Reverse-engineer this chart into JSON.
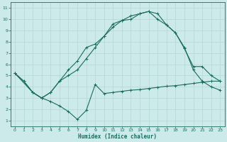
{
  "xlabel": "Humidex (Indice chaleur)",
  "bg_color": "#cdeaea",
  "grid_color": "#b8d8d8",
  "line_color": "#1a6b60",
  "xlim": [
    -0.5,
    23.5
  ],
  "ylim": [
    0.5,
    11.5
  ],
  "xticks": [
    0,
    1,
    2,
    3,
    4,
    5,
    6,
    7,
    8,
    9,
    10,
    11,
    12,
    13,
    14,
    15,
    16,
    17,
    18,
    19,
    20,
    21,
    22,
    23
  ],
  "yticks": [
    1,
    2,
    3,
    4,
    5,
    6,
    7,
    8,
    9,
    10,
    11
  ],
  "line1_x": [
    0,
    1,
    2,
    3,
    4,
    5,
    6,
    7,
    8,
    9,
    10,
    11,
    12,
    13,
    14,
    15,
    16,
    17,
    18,
    19,
    20,
    21,
    22,
    23
  ],
  "line1_y": [
    5.2,
    4.5,
    3.5,
    3.0,
    2.7,
    2.3,
    1.8,
    1.1,
    1.9,
    4.2,
    3.4,
    3.5,
    3.6,
    3.7,
    3.75,
    3.85,
    3.95,
    4.05,
    4.1,
    4.2,
    4.3,
    4.4,
    4.5,
    4.5
  ],
  "line2_x": [
    0,
    1,
    2,
    3,
    4,
    5,
    6,
    7,
    8,
    9,
    10,
    11,
    12,
    13,
    14,
    15,
    16,
    17,
    18,
    19,
    20,
    21,
    22,
    23
  ],
  "line2_y": [
    5.2,
    4.5,
    3.5,
    3.0,
    3.5,
    4.5,
    5.5,
    6.3,
    7.5,
    7.8,
    8.5,
    9.6,
    9.9,
    10.3,
    10.5,
    10.7,
    10.0,
    9.5,
    8.8,
    7.4,
    5.8,
    5.8,
    5.0,
    4.5
  ],
  "line3_x": [
    0,
    2,
    3,
    4,
    5,
    6,
    7,
    8,
    9,
    10,
    11,
    12,
    13,
    14,
    15,
    16,
    17,
    18,
    19,
    20,
    21,
    22,
    23
  ],
  "line3_y": [
    5.2,
    3.5,
    3.0,
    3.5,
    4.5,
    5.0,
    5.5,
    6.5,
    7.5,
    8.5,
    9.3,
    9.9,
    10.0,
    10.5,
    10.7,
    10.5,
    9.5,
    8.8,
    7.5,
    5.5,
    4.5,
    4.0,
    3.7
  ]
}
